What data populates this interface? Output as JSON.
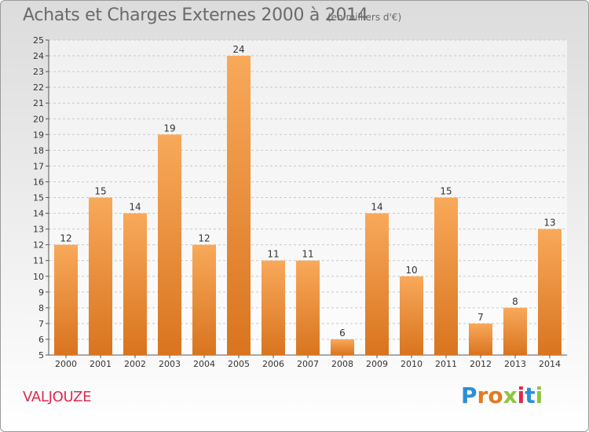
{
  "header": {
    "title": "Achats et Charges Externes 2000 à 2014",
    "subtitle": "(en milliers d'€)"
  },
  "location": "VALJOUZE",
  "logo": {
    "letters": [
      "P",
      "r",
      "o",
      "x",
      "i",
      "t",
      "i"
    ],
    "colors": [
      "#2a8fd6",
      "#e27b1f",
      "#e27b1f",
      "#8cc63f",
      "#e0284a",
      "#2a8fd6",
      "#8cc63f"
    ]
  },
  "colors": {
    "bar_top": "#f8a95a",
    "bar_bottom": "#d9741f",
    "grid": "#c8c8c8",
    "axis_text": "#333333"
  },
  "chart_data": {
    "type": "bar",
    "categories": [
      "2000",
      "2001",
      "2002",
      "2003",
      "2004",
      "2005",
      "2006",
      "2007",
      "2008",
      "2009",
      "2010",
      "2011",
      "2012",
      "2013",
      "2014"
    ],
    "values": [
      12,
      15,
      14,
      19,
      12,
      24,
      11,
      11,
      6,
      14,
      10,
      15,
      7,
      8,
      13
    ],
    "ylim": [
      5,
      25
    ],
    "yticks": [
      5,
      6,
      7,
      8,
      9,
      10,
      11,
      12,
      13,
      14,
      15,
      16,
      17,
      18,
      19,
      20,
      21,
      22,
      23,
      24,
      25
    ],
    "grid": true
  }
}
